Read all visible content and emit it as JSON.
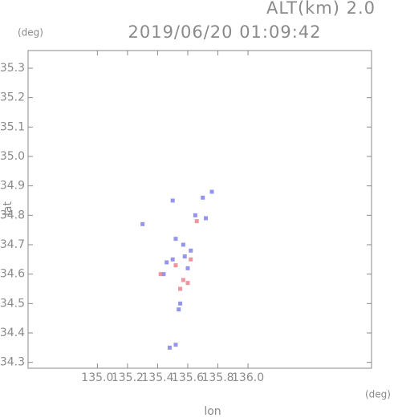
{
  "chart_data": {
    "type": "scatter",
    "title": "2019/06/20 01:09:42",
    "subtitle": "ALT(km) 2.0",
    "x_label": "lon",
    "x_unit": "(deg)",
    "y_label": "lat",
    "y_unit": "(deg)",
    "xlim": [
      134.54,
      136.82
    ],
    "ylim": [
      34.28,
      35.36
    ],
    "xticks": [
      {
        "value": 135.0,
        "label": "135.0"
      },
      135.2,
      135.4,
      135.6,
      135.8,
      {
        "value": 136.0,
        "label": "136.0"
      }
    ],
    "yticks": [
      34.3,
      34.4,
      34.5,
      34.6,
      34.7,
      34.8,
      34.9,
      {
        "value": 35.0,
        "label": "35.0"
      },
      35.1,
      35.2,
      35.3
    ],
    "series": [
      {
        "color": "#7a7ae8",
        "x": [
          135.3,
          135.46,
          135.5,
          135.52,
          135.55,
          135.54,
          135.58,
          135.62,
          135.6,
          135.65,
          135.72,
          135.7,
          135.48,
          135.52,
          135.44,
          135.76,
          135.57,
          135.5
        ],
        "y": [
          34.77,
          34.64,
          34.65,
          34.72,
          34.5,
          34.48,
          34.66,
          34.68,
          34.62,
          34.8,
          34.79,
          34.86,
          34.35,
          34.36,
          34.6,
          34.88,
          34.7,
          34.85
        ]
      },
      {
        "color": "#e87a8a",
        "x": [
          135.57,
          135.6,
          135.52,
          135.66,
          135.42,
          135.62,
          135.55
        ],
        "y": [
          34.58,
          34.57,
          34.63,
          34.78,
          34.6,
          34.65,
          34.55
        ]
      }
    ]
  }
}
